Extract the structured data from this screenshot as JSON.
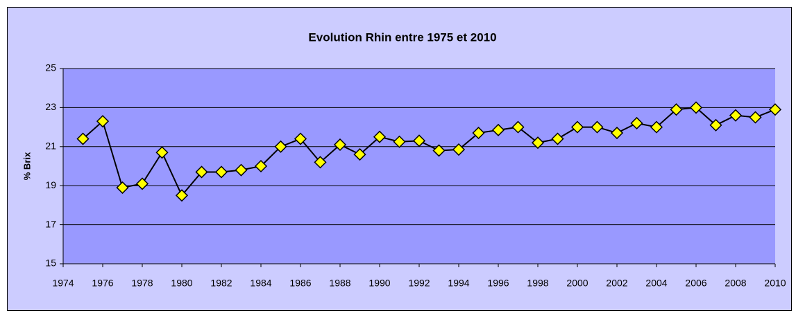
{
  "chart_data": {
    "type": "line",
    "title": "Evolution Rhin entre 1975 et 2010",
    "y_label": "% Brix",
    "x": [
      1975,
      1976,
      1977,
      1978,
      1979,
      1980,
      1981,
      1982,
      1983,
      1984,
      1985,
      1986,
      1987,
      1988,
      1989,
      1990,
      1991,
      1992,
      1993,
      1994,
      1995,
      1996,
      1997,
      1998,
      1999,
      2000,
      2001,
      2002,
      2003,
      2004,
      2005,
      2006,
      2007,
      2008,
      2009,
      2010
    ],
    "series": [
      {
        "color": "#000000",
        "marker_color": "#ffff00",
        "values": [
          21.4,
          22.3,
          18.9,
          19.1,
          20.7,
          18.5,
          19.7,
          19.7,
          19.8,
          20.0,
          21.0,
          21.4,
          20.2,
          21.1,
          20.6,
          21.5,
          21.25,
          21.3,
          20.8,
          20.85,
          21.7,
          21.85,
          22.0,
          21.2,
          21.4,
          22.0,
          22.0,
          21.7,
          22.2,
          22.0,
          22.9,
          23.0,
          22.1,
          22.6,
          22.5,
          22.9
        ]
      }
    ],
    "xlim": [
      1974,
      2010
    ],
    "xticks": [
      1974,
      1976,
      1978,
      1980,
      1982,
      1984,
      1986,
      1988,
      1990,
      1992,
      1994,
      1996,
      1998,
      2000,
      2002,
      2004,
      2006,
      2008,
      2010
    ],
    "ylim": [
      15,
      25
    ],
    "yticks": [
      15,
      17,
      19,
      21,
      23,
      25
    ],
    "grid": true
  }
}
